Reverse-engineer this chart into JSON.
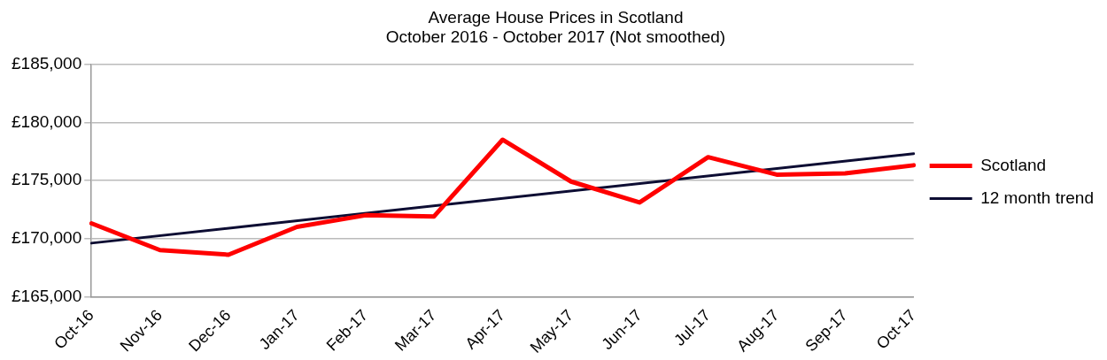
{
  "chart_data": {
    "type": "line",
    "title": "Average House Prices in Scotland",
    "subtitle": "October 2016 - October 2017 (Not smoothed)",
    "categories": [
      "Oct-16",
      "Nov-16",
      "Dec-16",
      "Jan-17",
      "Feb-17",
      "Mar-17",
      "Apr-17",
      "May-17",
      "Jun-17",
      "Jul-17",
      "Aug-17",
      "Sep-17",
      "Oct-17"
    ],
    "series": [
      {
        "name": "Scotland",
        "color": "#ff0000",
        "values": [
          171300,
          169000,
          168600,
          171000,
          172000,
          171900,
          178500,
          174900,
          173100,
          177000,
          175500,
          175600,
          176300
        ]
      },
      {
        "name": "12 month trend",
        "color": "#0d0d33",
        "type": "line",
        "x": [
          "Oct-16",
          "Oct-17"
        ],
        "values": [
          169600,
          177300
        ]
      }
    ],
    "ylim": [
      165000,
      185000
    ],
    "yticks": [
      {
        "value": 165000,
        "label": "£165,000"
      },
      {
        "value": 170000,
        "label": "£170,000"
      },
      {
        "value": 175000,
        "label": "£175,000"
      },
      {
        "value": 180000,
        "label": "£180,000"
      },
      {
        "value": 185000,
        "label": "£185,000"
      }
    ],
    "grid": "y",
    "legend": "right",
    "marker": "none",
    "line_style": "solid"
  }
}
